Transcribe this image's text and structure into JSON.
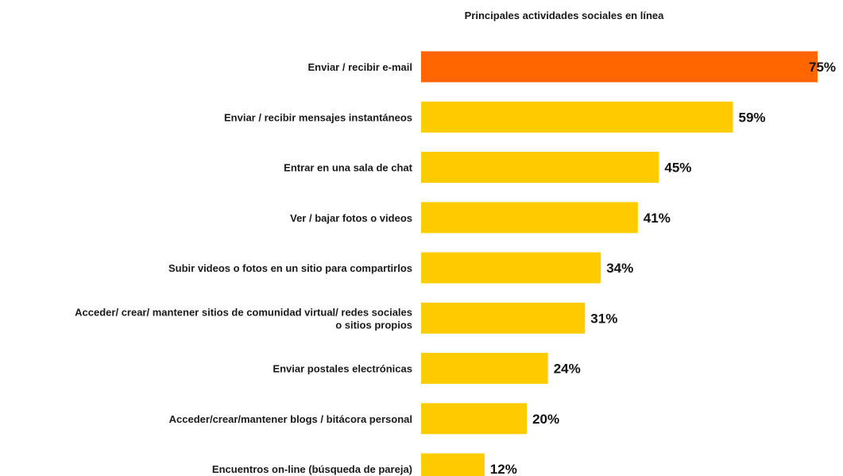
{
  "chart_data": {
    "type": "bar",
    "orientation": "horizontal",
    "title": "Principales actividades sociales en línea",
    "categories": [
      [
        "Enviar / recibir e-mail"
      ],
      [
        "Enviar / recibir mensajes instantáneos"
      ],
      [
        "Entrar en una sala de chat"
      ],
      [
        "Ver / bajar fotos o videos"
      ],
      [
        "Subir videos o fotos en un sitio para compartirlos"
      ],
      [
        "Acceder/ crear/ mantener sitios de comunidad virtual/ redes sociales",
        "o sitios propios"
      ],
      [
        "Enviar postales electrónicas"
      ],
      [
        "Acceder/crear/mantener blogs / bitácora personal"
      ],
      [
        "Encuentros on-line (búsqueda de pareja)"
      ]
    ],
    "values": [
      75,
      59,
      45,
      41,
      34,
      31,
      24,
      20,
      12
    ],
    "value_labels": [
      "75%",
      "59%",
      "45%",
      "41%",
      "34%",
      "31%",
      "24%",
      "20%",
      "12%"
    ],
    "unit": "%",
    "xlim": [
      0,
      75
    ],
    "grid": false,
    "legend": "none",
    "colors": {
      "highlight": "#FF6600",
      "default": "#FFCC00"
    },
    "highlight_index": 0
  }
}
